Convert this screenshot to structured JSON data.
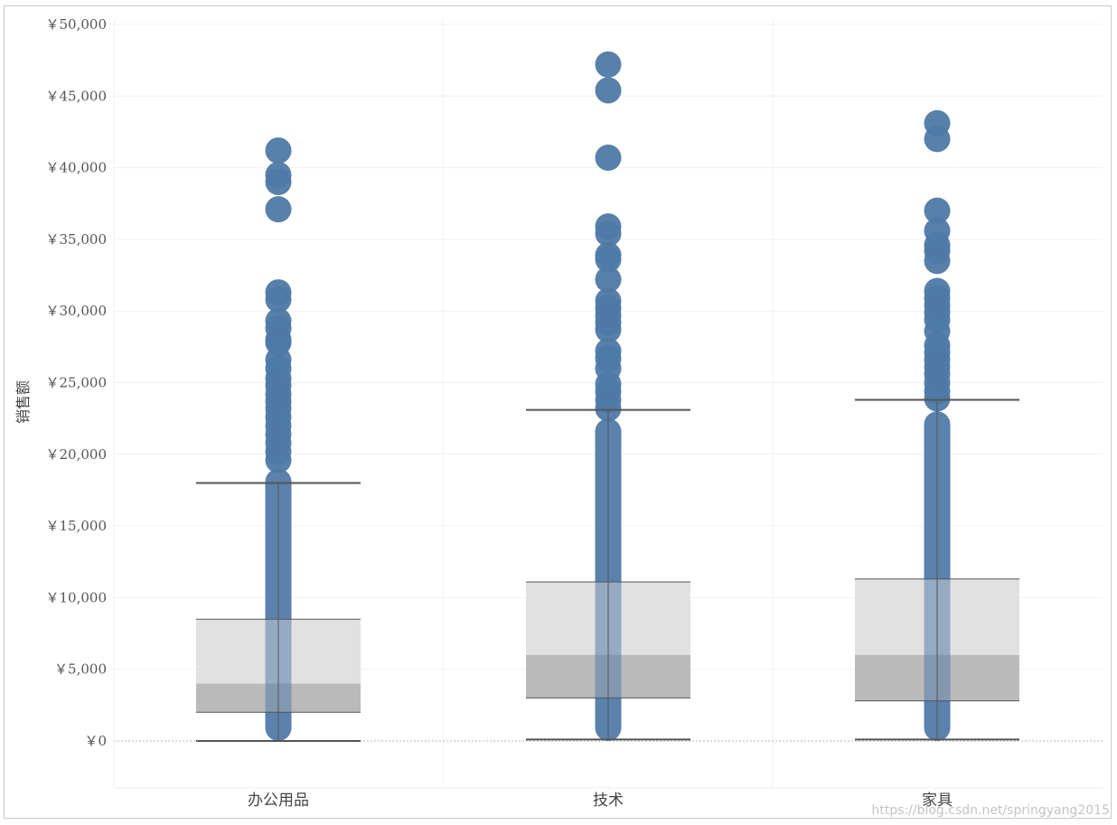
{
  "chart_data": {
    "type": "box",
    "ylabel": "销售额",
    "ylim": [
      -3200,
      50000
    ],
    "yticks": [
      {
        "value": 0,
        "label": "￥0"
      },
      {
        "value": 5000,
        "label": "￥5,000"
      },
      {
        "value": 10000,
        "label": "￥10,000"
      },
      {
        "value": 15000,
        "label": "￥15,000"
      },
      {
        "value": 20000,
        "label": "￥20,000"
      },
      {
        "value": 25000,
        "label": "￥25,000"
      },
      {
        "value": 30000,
        "label": "￥30,000"
      },
      {
        "value": 35000,
        "label": "￥35,000"
      },
      {
        "value": 40000,
        "label": "￥40,000"
      },
      {
        "value": 45000,
        "label": "￥45,000"
      },
      {
        "value": 50000,
        "label": "￥50,000"
      }
    ],
    "grid": true,
    "categories": [
      "办公用品",
      "技术",
      "家具"
    ],
    "boxes": [
      {
        "category": "办公用品",
        "whisker_low": 0,
        "q1": 2000,
        "median": 4000,
        "q3": 8500,
        "whisker_high": 18000,
        "points_range": [
          0,
          19000
        ],
        "points": [
          41200,
          39500,
          39000,
          37100,
          31300,
          30800,
          29300,
          28800,
          28000,
          27800,
          26600,
          26000,
          25300,
          24800,
          24200,
          23700,
          23200,
          22600,
          22000,
          21400,
          20800,
          20200,
          19600
        ]
      },
      {
        "category": "技术",
        "whisker_low": 100,
        "q1": 3000,
        "median": 6000,
        "q3": 11100,
        "whisker_high": 23100,
        "points_range": [
          0,
          22500
        ],
        "points": [
          47200,
          45400,
          40700,
          35900,
          35400,
          33900,
          33600,
          32200,
          30700,
          30200,
          29700,
          29200,
          28700,
          27200,
          26700,
          26000,
          24900,
          24400,
          23800,
          23200
        ]
      },
      {
        "category": "家具",
        "whisker_low": 100,
        "q1": 2800,
        "median": 6000,
        "q3": 11300,
        "whisker_high": 23800,
        "points_range": [
          0,
          23000
        ],
        "points": [
          43100,
          42000,
          37000,
          35600,
          34600,
          34200,
          33500,
          31400,
          30900,
          30400,
          29900,
          29400,
          28600,
          27600,
          27100,
          26600,
          26100,
          25600,
          25000,
          24400,
          23900
        ]
      }
    ],
    "colors": {
      "points": "#4e79a7",
      "box_upper": "#e1e1e1",
      "box_lower": "#bababa",
      "whisker": "#555555",
      "grid": "#f0f0f0",
      "zero_line": "#b5b5b5"
    }
  },
  "watermark": "https://blog.csdn.net/springyang2015"
}
